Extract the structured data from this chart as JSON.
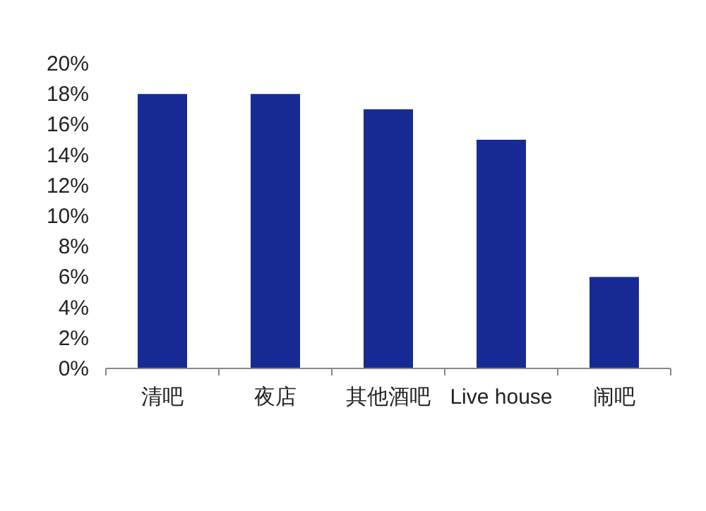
{
  "chart_data": {
    "type": "bar",
    "categories": [
      "清吧",
      "夜店",
      "其他酒吧",
      "Live house",
      "闹吧"
    ],
    "values": [
      18,
      18,
      17,
      15,
      6
    ],
    "color": "#172a94",
    "ylim": [
      0,
      20
    ],
    "yticks": [
      {
        "value": 0,
        "label": "0%"
      },
      {
        "value": 2,
        "label": "2%"
      },
      {
        "value": 4,
        "label": "4%"
      },
      {
        "value": 6,
        "label": "6%"
      },
      {
        "value": 8,
        "label": "8%"
      },
      {
        "value": 10,
        "label": "10%"
      },
      {
        "value": 12,
        "label": "12%"
      },
      {
        "value": 14,
        "label": "14%"
      },
      {
        "value": 16,
        "label": "16%"
      },
      {
        "value": 18,
        "label": "18%"
      },
      {
        "value": 20,
        "label": "20%"
      }
    ],
    "grid": false
  }
}
